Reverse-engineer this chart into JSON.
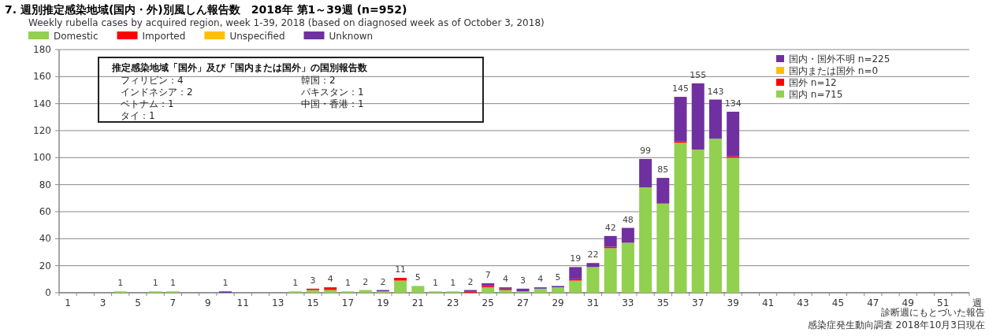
{
  "chart_data": {
    "type": "bar",
    "stacked": true,
    "title": "7. 週別推定感染地域(国内・外)別風しん報告数　2018年 第1～39週 (n=952)",
    "subtitle": "Weekly rubella cases by acquired region, week 1-39, 2018 (based on diagnosed week as of October 3, 2018)",
    "xlabel": "週",
    "categories": [
      "1",
      null,
      "3",
      null,
      "5",
      null,
      "7",
      null,
      "9",
      null,
      "11",
      null,
      "13",
      null,
      "15",
      null,
      "17",
      null,
      "19",
      null,
      "21",
      null,
      "23",
      null,
      "25",
      null,
      "27",
      null,
      "29",
      null,
      "31",
      null,
      "33",
      null,
      "35",
      null,
      "37",
      null,
      "39",
      null,
      "41",
      null,
      "43",
      null,
      "45",
      null,
      "47",
      null,
      "49",
      null,
      "51",
      null
    ],
    "series": [
      {
        "name": "Domestic",
        "color": "#92d050",
        "values": [
          0,
          0,
          0,
          1,
          0,
          1,
          1,
          0,
          0,
          0,
          0,
          0,
          0,
          1,
          2,
          2,
          1,
          2,
          1,
          9,
          5,
          1,
          1,
          0,
          4,
          2,
          1,
          3,
          4,
          9,
          19,
          33,
          37,
          78,
          66,
          111,
          106,
          114,
          100,
          0,
          0,
          0,
          0,
          0,
          0,
          0,
          0,
          0,
          0,
          0,
          0,
          0
        ]
      },
      {
        "name": "Imported",
        "color": "#ff0000",
        "values": [
          0,
          0,
          0,
          0,
          0,
          0,
          0,
          0,
          0,
          0,
          0,
          0,
          0,
          0,
          1,
          2,
          0,
          0,
          0,
          2,
          0,
          0,
          0,
          1,
          1,
          1,
          0,
          0,
          0,
          1,
          0,
          1,
          0,
          0,
          0,
          1,
          0,
          0,
          1,
          0,
          0,
          0,
          0,
          0,
          0,
          0,
          0,
          0,
          0,
          0,
          0,
          0
        ]
      },
      {
        "name": "Unspecified",
        "color": "#ffc000",
        "values": [
          0,
          0,
          0,
          0,
          0,
          0,
          0,
          0,
          0,
          0,
          0,
          0,
          0,
          0,
          0,
          0,
          0,
          0,
          0,
          0,
          0,
          0,
          0,
          0,
          0,
          0,
          0,
          0,
          0,
          0,
          0,
          0,
          0,
          0,
          0,
          0,
          0,
          0,
          0,
          0,
          0,
          0,
          0,
          0,
          0,
          0,
          0,
          0,
          0,
          0,
          0,
          0
        ]
      },
      {
        "name": "Unknown",
        "color": "#7030a0",
        "values": [
          0,
          0,
          0,
          0,
          0,
          0,
          0,
          0,
          0,
          1,
          0,
          0,
          0,
          0,
          0,
          0,
          0,
          0,
          1,
          0,
          0,
          0,
          0,
          1,
          2,
          1,
          2,
          1,
          1,
          9,
          3,
          8,
          11,
          21,
          19,
          33,
          49,
          29,
          33,
          0,
          0,
          0,
          0,
          0,
          0,
          0,
          0,
          0,
          0,
          0,
          0,
          0
        ]
      }
    ],
    "totals": [
      null,
      null,
      null,
      "1",
      null,
      "1",
      "1",
      null,
      null,
      "1",
      null,
      null,
      null,
      "1",
      "3",
      "4",
      "1",
      "2",
      "2",
      "11",
      "5",
      "1",
      "1",
      "2",
      "7",
      "4",
      "3",
      "4",
      "5",
      "19",
      "22",
      "42",
      "48",
      "99",
      "85",
      "145",
      "155",
      "143",
      "134",
      null,
      null,
      null,
      null,
      null,
      null,
      null,
      null,
      null,
      null,
      null,
      null,
      null
    ],
    "ylim": [
      0,
      180
    ],
    "yticks": [
      0,
      20,
      40,
      60,
      80,
      100,
      120,
      140,
      160,
      180
    ],
    "grid": "y",
    "legend": "top",
    "annotations": [
      "推定感染地域「国外」及び「国内または国外」の国別報告数",
      "フィリピン：4",
      "インドネシア：2",
      "ベトナム：1",
      "タイ：1",
      "韓国：2",
      "パキスタン：1",
      "中国・香港：1",
      "国内・国外不明 n=225",
      "国内または国外 n=0",
      "国外 n=12",
      "国内 n=715",
      "診断週にもとづいた報告",
      "感染症発生動向調査 2018年10月3日現在"
    ]
  }
}
